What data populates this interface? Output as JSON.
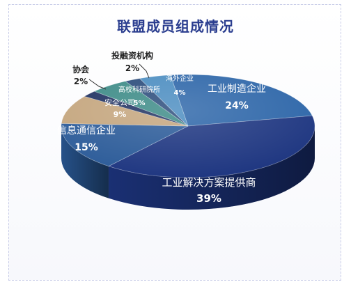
{
  "chart_data": {
    "type": "pie",
    "style": "3d",
    "title": "联盟成员组成情况",
    "slices": [
      {
        "label": "工业制造企业",
        "value": 24,
        "display": "24%",
        "color": "#2c65a8"
      },
      {
        "label": "工业解决方案提供商",
        "value": 39,
        "display": "39%",
        "color": "#1d3580"
      },
      {
        "label": "信息通信企业",
        "value": 15,
        "display": "15%",
        "color": "#2a5a98"
      },
      {
        "label": "安全公司",
        "value": 9,
        "display": "9%",
        "color": "#c4a57d"
      },
      {
        "label": "协会",
        "value": 2,
        "display": "2%",
        "color": "#1e3060"
      },
      {
        "label": "高校科研院所",
        "value": 5,
        "display": "5%",
        "color": "#3b8a86"
      },
      {
        "label": "投融资机构",
        "value": 2,
        "display": "2%",
        "color": "#294a7a"
      },
      {
        "label": "海外企业",
        "value": 4,
        "display": "4%",
        "color": "#4a8cc0"
      }
    ]
  }
}
